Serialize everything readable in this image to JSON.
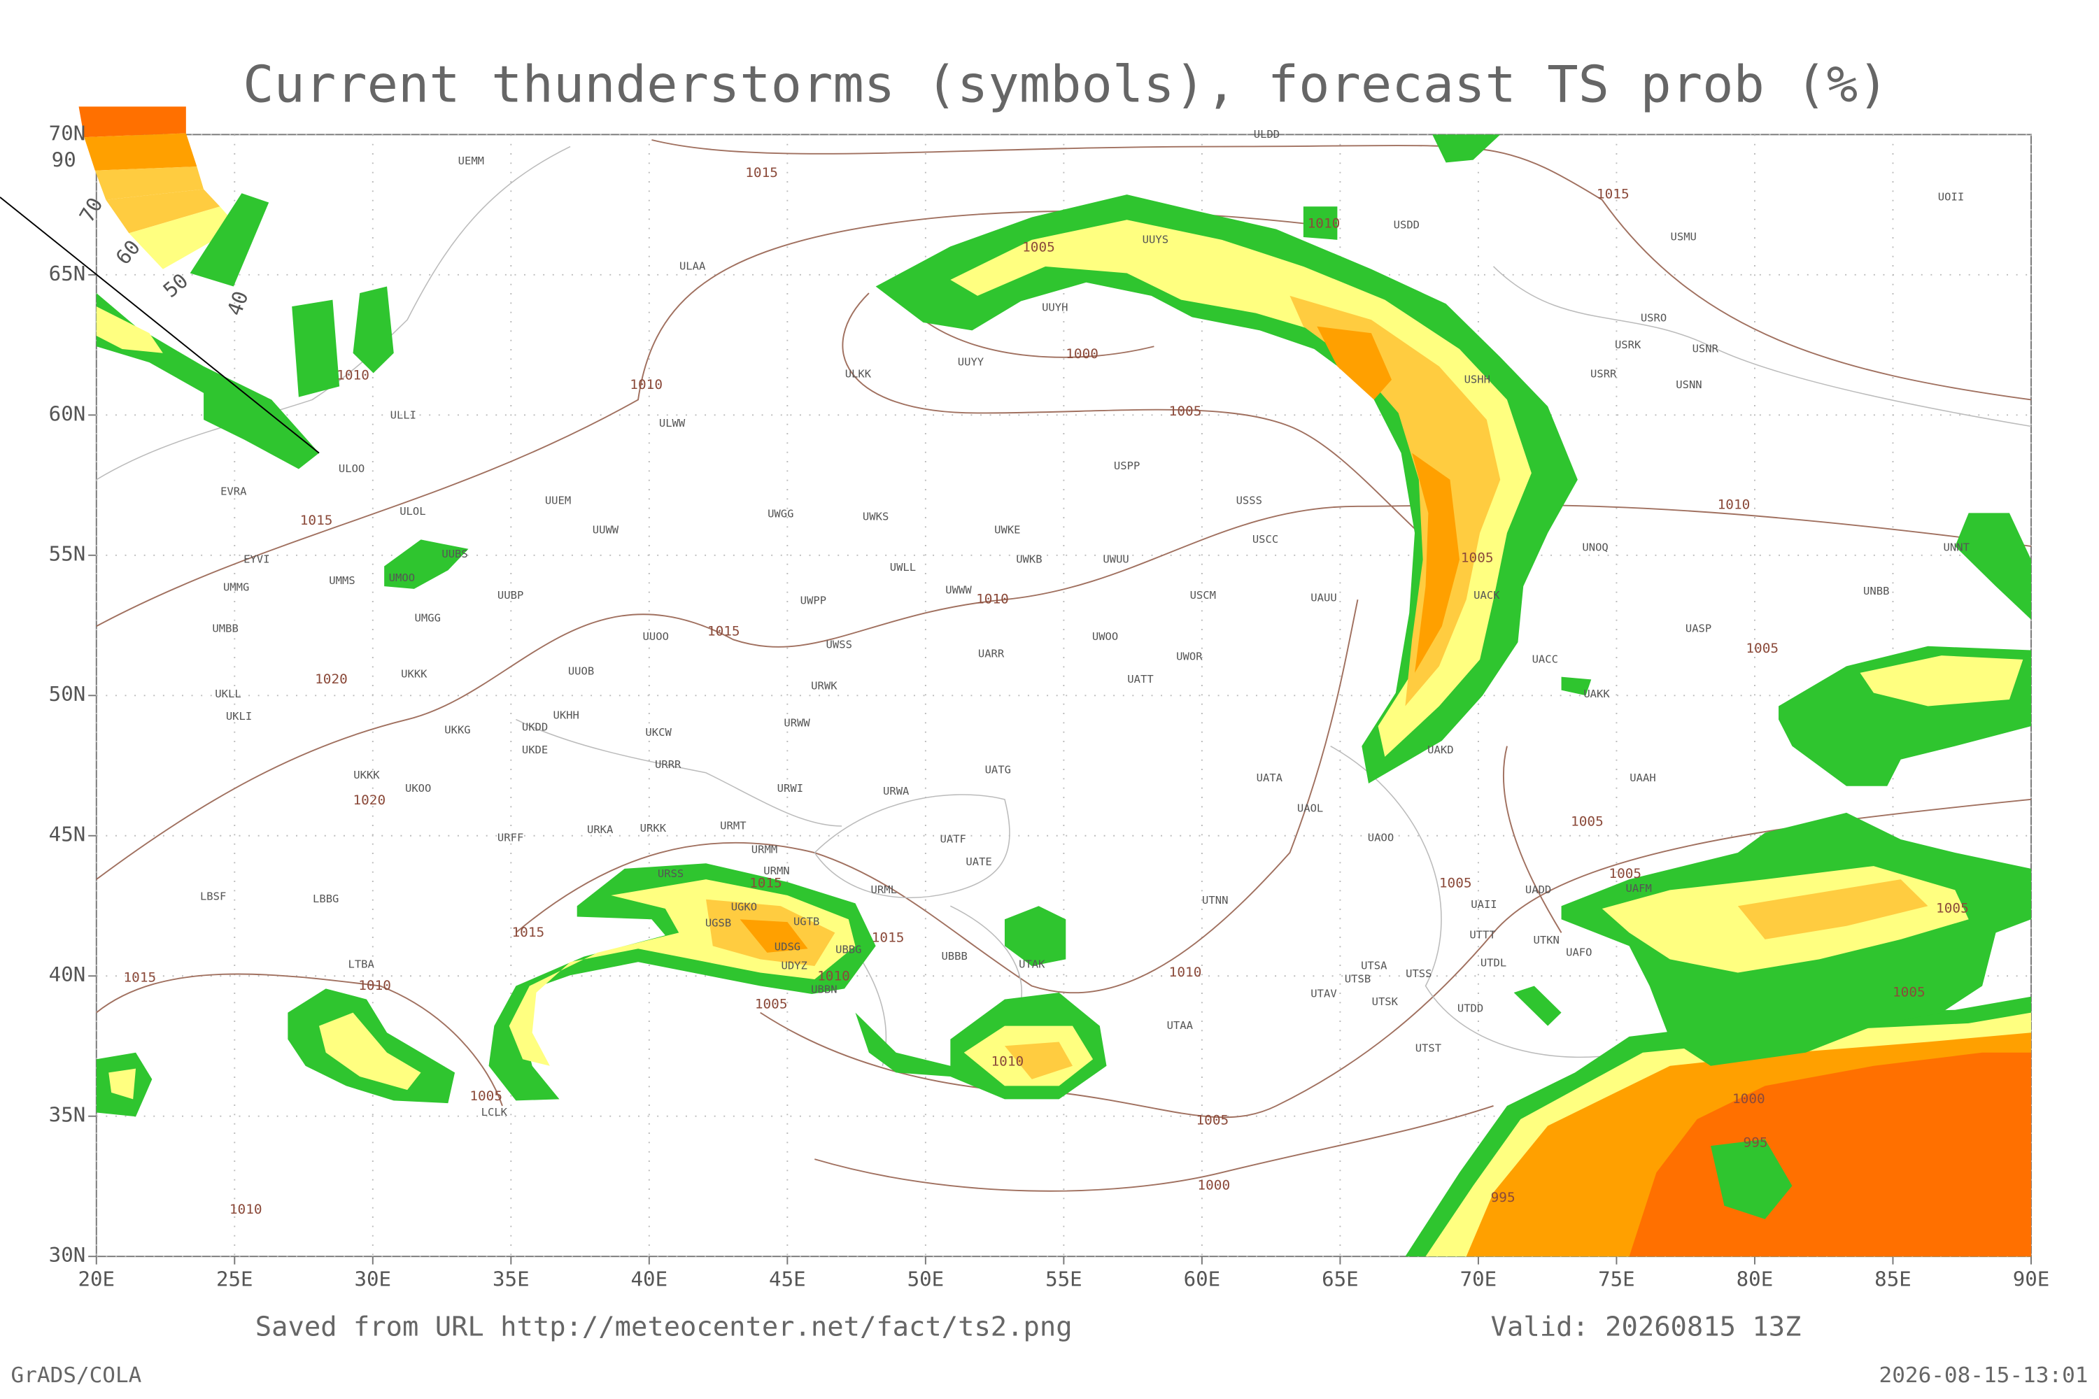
{
  "title": "Current thunderstorms (symbols), forecast TS prob (%)",
  "legend": {
    "labels": [
      90,
      70,
      60,
      50,
      40
    ]
  },
  "map": {
    "lat_ticks": [
      {
        "value": 70,
        "label": "70N"
      },
      {
        "value": 65,
        "label": "65N"
      },
      {
        "value": 60,
        "label": "60N"
      },
      {
        "value": 55,
        "label": "55N"
      },
      {
        "value": 50,
        "label": "50N"
      },
      {
        "value": 45,
        "label": "45N"
      },
      {
        "value": 40,
        "label": "40N"
      },
      {
        "value": 35,
        "label": "35N"
      },
      {
        "value": 30,
        "label": "30N"
      }
    ],
    "lon_ticks": [
      {
        "value": 20,
        "label": "20E"
      },
      {
        "value": 25,
        "label": "25E"
      },
      {
        "value": 30,
        "label": "30E"
      },
      {
        "value": 35,
        "label": "35E"
      },
      {
        "value": 40,
        "label": "40E"
      },
      {
        "value": 45,
        "label": "45E"
      },
      {
        "value": 50,
        "label": "50E"
      },
      {
        "value": 55,
        "label": "55E"
      },
      {
        "value": 60,
        "label": "60E"
      },
      {
        "value": 65,
        "label": "65E"
      },
      {
        "value": 70,
        "label": "70E"
      },
      {
        "value": 75,
        "label": "75E"
      },
      {
        "value": 80,
        "label": "80E"
      },
      {
        "value": 85,
        "label": "85E"
      },
      {
        "value": 90,
        "label": "90E"
      }
    ],
    "stations": [
      "ULDD",
      "UEMM",
      "ULAA",
      "UUYS",
      "USDD",
      "UOII",
      "USMU",
      "UUYH",
      "USRO",
      "USRK",
      "USNR",
      "UUYY",
      "ULKK",
      "USHH",
      "USRR",
      "USNN",
      "ULLI",
      "ULWW",
      "USPP",
      "ULOO",
      "EVRA",
      "USSS",
      "ULOL",
      "UUEM",
      "UWGG",
      "UWKS",
      "UWKE",
      "UUWW",
      "USCC",
      "UNOQ",
      "UNNT",
      "EYVI",
      "UUBS",
      "UWKB",
      "UWUU",
      "UWLL",
      "UMMS",
      "UMOO",
      "UMMG",
      "UUBP",
      "UWWW",
      "USCM",
      "UAUU",
      "UACK",
      "UNBB",
      "UWPP",
      "UMGG",
      "UMBB",
      "UUOO",
      "UASP",
      "UWOO",
      "UWSS",
      "UARR",
      "UWOR",
      "UACC",
      "UUOB",
      "UKKK",
      "UATT",
      "UAKK",
      "UKLL",
      "URWK",
      "UKHH",
      "UKLI",
      "URWW",
      "UKKG",
      "UKDD",
      "UKCW",
      "UKDE",
      "UAKD",
      "URRR",
      "UATG",
      "UKKK",
      "UATA",
      "UAAH",
      "URWI",
      "UKOO",
      "URWA",
      "UAOL",
      "URFF",
      "URKA",
      "URKK",
      "URMT",
      "UAOO",
      "UATF",
      "UATE",
      "URMM",
      "URMN",
      "URSS",
      "UADD",
      "UAFM",
      "URML",
      "LBSF",
      "LBBG",
      "UTNN",
      "UGKO",
      "UGTB",
      "UAII",
      "UGSB",
      "UTTT",
      "UTKN",
      "UDSG",
      "UBBG",
      "UAFO",
      "UBBB",
      "UDYZ",
      "LTBA",
      "UTDL",
      "UTSA",
      "UTSS",
      "UTSB",
      "UTAK",
      "UBBN",
      "UTAV",
      "UTSK",
      "UTDD",
      "UTAA",
      "UTST",
      "LCLK"
    ],
    "isobar_labels": [
      1015,
      1015,
      1010,
      1005,
      1010,
      1010,
      1000,
      1005,
      1010,
      1015,
      1005,
      1010,
      1015,
      1005,
      1020,
      1020,
      1005,
      1015,
      1005,
      1005,
      1015,
      1015,
      1005,
      1010,
      1010,
      1010,
      1015,
      1005,
      1005,
      1010,
      1005,
      1000,
      1005,
      995,
      1000,
      995,
      1010
    ]
  },
  "footer": {
    "source": "Saved from URL http://meteocenter.net/fact/ts2.png",
    "valid": "Valid: 20260815 13Z",
    "software": "GrADS/COLA",
    "timestamp": "2026-08-15-13:01"
  }
}
